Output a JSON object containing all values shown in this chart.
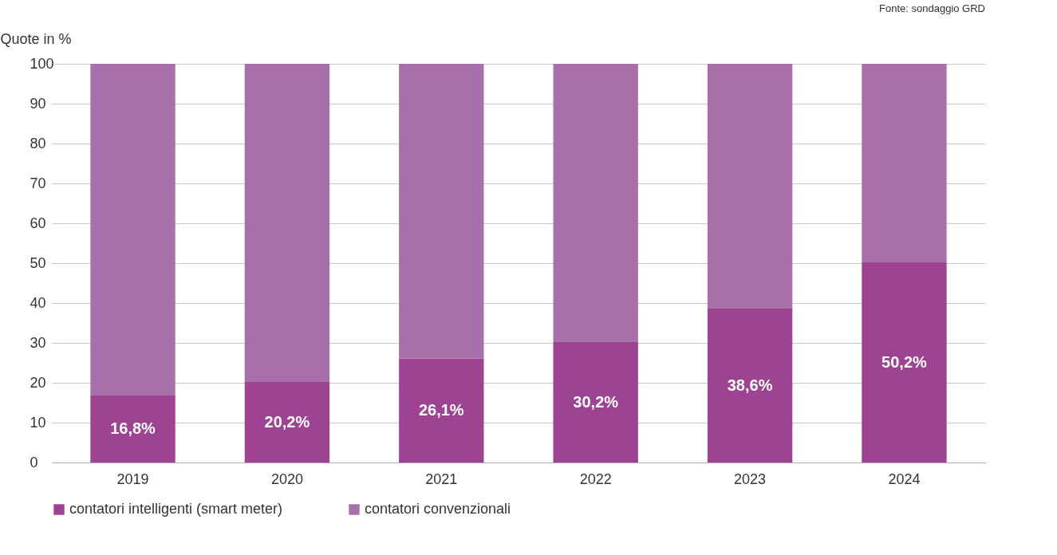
{
  "chart_data": {
    "type": "bar",
    "stacked": true,
    "ylabel": "Quote in %",
    "annotations": [
      "Fonte: sondaggio GRD"
    ],
    "categories": [
      "2019",
      "2020",
      "2021",
      "2022",
      "2023",
      "2024"
    ],
    "series": [
      {
        "name": "contatori intelligenti (smart meter)",
        "color": "#9e4292",
        "values": [
          16.8,
          20.2,
          26.1,
          30.2,
          38.6,
          50.2
        ],
        "value_labels": [
          "16,8%",
          "20,2%",
          "26,1%",
          "30,2%",
          "38,6%",
          "50,2%"
        ]
      },
      {
        "name": "contatori convenzionali",
        "color": "#a870ab",
        "values": [
          83.2,
          79.8,
          73.9,
          69.8,
          61.4,
          49.8
        ]
      }
    ],
    "ylim": [
      0,
      100
    ],
    "yticks": [
      0,
      10,
      20,
      30,
      40,
      50,
      60,
      70,
      80,
      90,
      100
    ],
    "grid": "y",
    "legend": "bottom"
  }
}
